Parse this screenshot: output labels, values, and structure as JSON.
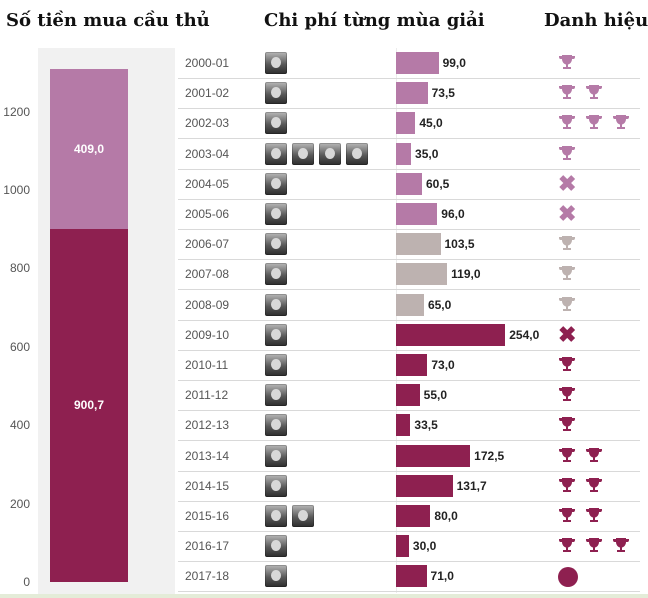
{
  "titles": {
    "left": "Số tiền mua cầu thủ",
    "middle": "Chi phí từng mùa giải",
    "right": "Danh hiệu"
  },
  "colors": {
    "pink": "#b57aa7",
    "maroon": "#8e2050",
    "grey": "#bdb2b0",
    "panel": "#f1f1f1"
  },
  "chart_data": [
    {
      "type": "bar",
      "title": "Số tiền mua cầu thủ",
      "stacked": true,
      "ylim": [
        0,
        1310
      ],
      "yticks": [
        0,
        200,
        400,
        600,
        800,
        1000,
        1200
      ],
      "series": [
        {
          "values": [
            900.7
          ],
          "label": "900,7",
          "color": "#8e2050"
        },
        {
          "values": [
            409.0
          ],
          "label": "409,0",
          "color": "#b57aa7"
        }
      ]
    },
    {
      "type": "bar",
      "title": "Chi phí từng mùa giải",
      "orientation": "horizontal",
      "categories": [
        "2000-01",
        "2001-02",
        "2002-03",
        "2003-04",
        "2004-05",
        "2005-06",
        "2006-07",
        "2007-08",
        "2008-09",
        "2009-10",
        "2010-11",
        "2011-12",
        "2012-13",
        "2013-14",
        "2014-15",
        "2015-16",
        "2016-17",
        "2017-18"
      ],
      "values": [
        99.0,
        73.5,
        45.0,
        35.0,
        60.5,
        96.0,
        103.5,
        119.0,
        65.0,
        254.0,
        73.0,
        55.0,
        33.5,
        172.5,
        131.7,
        80.0,
        30.0,
        71.0
      ],
      "labels": [
        "99,0",
        "73,5",
        "45,0",
        "35,0",
        "60,5",
        "96,0",
        "103,5",
        "119,0",
        "65,0",
        "254,0",
        "73,0",
        "55,0",
        "33,5",
        "172,5",
        "131,7",
        "80,0",
        "30,0",
        "71,0"
      ],
      "bar_colors": [
        "pink",
        "pink",
        "pink",
        "pink",
        "pink",
        "pink",
        "grey",
        "grey",
        "grey",
        "maroon",
        "maroon",
        "maroon",
        "maroon",
        "maroon",
        "maroon",
        "maroon",
        "maroon",
        "maroon"
      ],
      "coach_photos": [
        1,
        1,
        1,
        4,
        1,
        1,
        1,
        1,
        1,
        1,
        1,
        1,
        1,
        1,
        1,
        2,
        1,
        1
      ],
      "honours": [
        [
          {
            "icon": "trophy-icon",
            "color": "pink"
          }
        ],
        [
          {
            "icon": "trophy-icon",
            "color": "pink"
          },
          {
            "icon": "trophy-icon",
            "color": "pink"
          }
        ],
        [
          {
            "icon": "trophy-icon",
            "color": "pink"
          },
          {
            "icon": "trophy-icon",
            "color": "pink"
          },
          {
            "icon": "trophy-icon",
            "color": "pink"
          }
        ],
        [
          {
            "icon": "trophy-icon",
            "color": "pink"
          }
        ],
        [
          {
            "icon": "cross-icon",
            "color": "pink"
          }
        ],
        [
          {
            "icon": "cross-icon",
            "color": "pink"
          }
        ],
        [
          {
            "icon": "trophy-icon",
            "color": "grey"
          }
        ],
        [
          {
            "icon": "trophy-icon",
            "color": "grey"
          }
        ],
        [
          {
            "icon": "trophy-icon",
            "color": "grey"
          }
        ],
        [
          {
            "icon": "cross-icon",
            "color": "maroon"
          }
        ],
        [
          {
            "icon": "trophy-icon",
            "color": "maroon"
          }
        ],
        [
          {
            "icon": "trophy-icon",
            "color": "maroon"
          }
        ],
        [
          {
            "icon": "trophy-icon",
            "color": "maroon"
          }
        ],
        [
          {
            "icon": "trophy-icon",
            "color": "maroon"
          },
          {
            "icon": "trophy-icon",
            "color": "maroon"
          }
        ],
        [
          {
            "icon": "trophy-icon",
            "color": "maroon"
          },
          {
            "icon": "trophy-icon",
            "color": "maroon"
          }
        ],
        [
          {
            "icon": "trophy-icon",
            "color": "maroon"
          },
          {
            "icon": "trophy-icon",
            "color": "maroon"
          }
        ],
        [
          {
            "icon": "trophy-icon",
            "color": "maroon"
          },
          {
            "icon": "trophy-icon",
            "color": "maroon"
          },
          {
            "icon": "trophy-icon",
            "color": "maroon"
          }
        ],
        [
          {
            "icon": "dot-icon",
            "color": "maroon"
          }
        ]
      ]
    }
  ]
}
